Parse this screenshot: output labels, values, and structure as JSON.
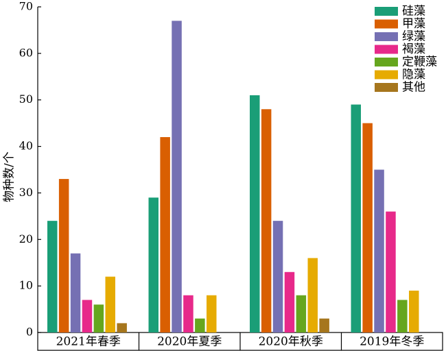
{
  "chart_data": {
    "type": "bar",
    "categories": [
      "2021年春季",
      "2020年夏季",
      "2020年秋季",
      "2019年冬季"
    ],
    "ylabel": "物种数/个",
    "ylim": [
      0,
      70
    ],
    "yticks": [
      0,
      10,
      20,
      30,
      40,
      50,
      60,
      70
    ],
    "grid": false,
    "legend_position": "top-right",
    "series": [
      {
        "name": "硅藻",
        "color": "#1a9e77",
        "values": [
          24,
          29,
          51,
          49
        ]
      },
      {
        "name": "甲藻",
        "color": "#d95f02",
        "values": [
          33,
          42,
          48,
          45
        ]
      },
      {
        "name": "绿藻",
        "color": "#7570b3",
        "values": [
          17,
          67,
          24,
          35
        ]
      },
      {
        "name": "褐藻",
        "color": "#e7298a",
        "values": [
          7,
          8,
          13,
          26
        ]
      },
      {
        "name": "定鞭藻",
        "color": "#66a61e",
        "values": [
          6,
          3,
          8,
          7
        ]
      },
      {
        "name": "隐藻",
        "color": "#e6ab02",
        "values": [
          12,
          8,
          16,
          9
        ]
      },
      {
        "name": "其他",
        "color": "#a6761d",
        "values": [
          2,
          0,
          3,
          0
        ]
      }
    ]
  }
}
